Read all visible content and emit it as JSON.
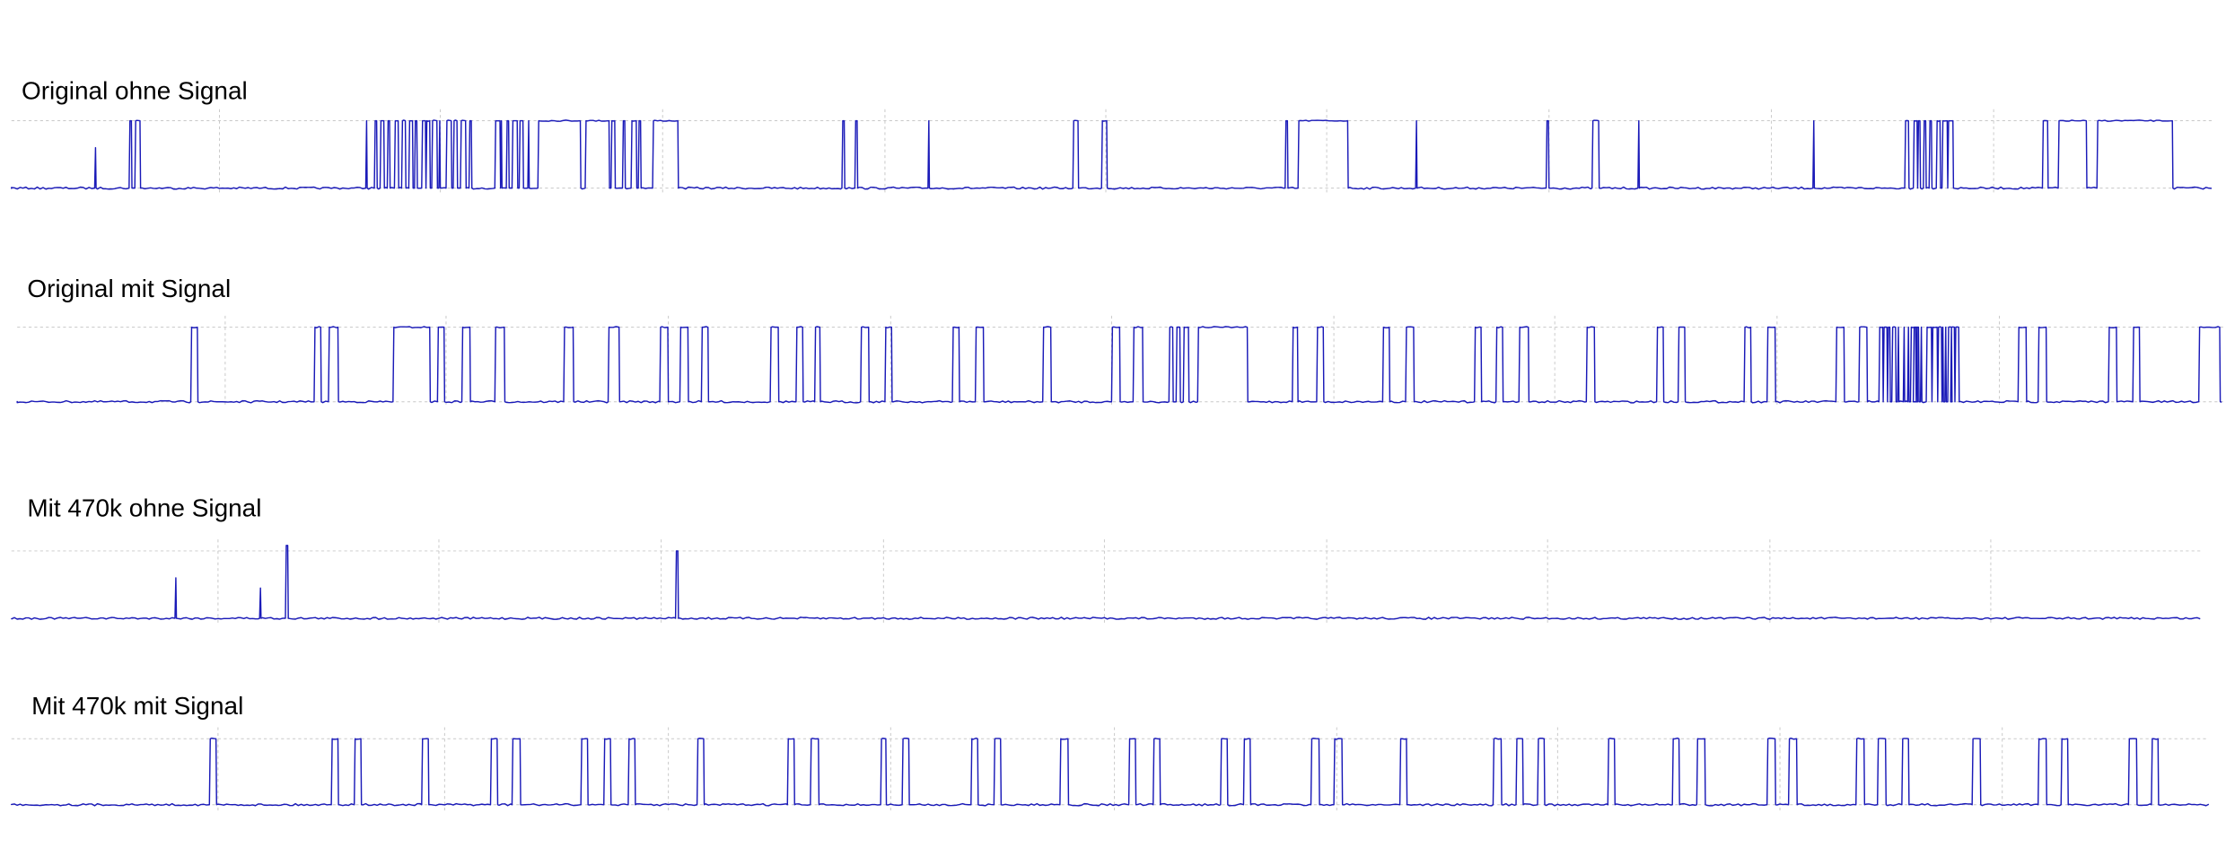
{
  "panels": [
    {
      "label": "Original ohne Signal"
    },
    {
      "label": "Original mit Signal"
    },
    {
      "label": "Mit 470k ohne Signal"
    },
    {
      "label": "Mit 470k mit Signal"
    }
  ]
}
